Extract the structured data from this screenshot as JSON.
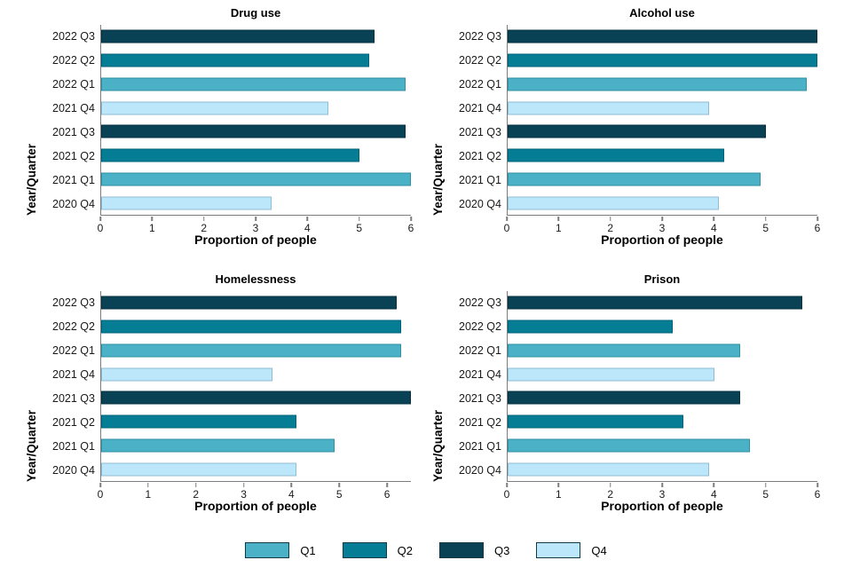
{
  "palette": {
    "q1": "#4BB1C6",
    "q2": "#057D95",
    "q3": "#0A4255",
    "q4": "#BCE7FA",
    "q1_border": "#2F8FA3",
    "q2_border": "#01617A",
    "q3_border": "#06303F",
    "q4_border": "#8FBCD4",
    "axis_color": "#7D7D7D",
    "legend_border": "#12384A"
  },
  "chart_data": [
    {
      "type": "bar",
      "orientation": "horizontal",
      "title": "Drug use",
      "xlabel": "Proportion of people",
      "ylabel": "Year/Quarter",
      "categories": [
        "2022 Q3",
        "2022 Q2",
        "2022 Q1",
        "2021 Q4",
        "2021 Q3",
        "2021 Q2",
        "2021 Q1",
        "2020 Q4"
      ],
      "values": [
        5.3,
        5.2,
        5.9,
        4.4,
        5.9,
        5.0,
        6.0,
        3.3
      ],
      "quarters": [
        "q3",
        "q2",
        "q1",
        "q4",
        "q3",
        "q2",
        "q1",
        "q4"
      ],
      "xlim": [
        0,
        6
      ],
      "xticks": [
        0,
        1,
        2,
        3,
        4,
        5,
        6
      ],
      "grid": false
    },
    {
      "type": "bar",
      "orientation": "horizontal",
      "title": "Alcohol use",
      "xlabel": "Proportion of people",
      "ylabel": "Year/Quarter",
      "categories": [
        "2022 Q3",
        "2022 Q2",
        "2022 Q1",
        "2021 Q4",
        "2021 Q3",
        "2021 Q2",
        "2021 Q1",
        "2020 Q4"
      ],
      "values": [
        6.0,
        6.0,
        5.8,
        3.9,
        5.0,
        4.2,
        4.9,
        4.1
      ],
      "quarters": [
        "q3",
        "q2",
        "q1",
        "q4",
        "q3",
        "q2",
        "q1",
        "q4"
      ],
      "xlim": [
        0,
        6
      ],
      "xticks": [
        0,
        1,
        2,
        3,
        4,
        5,
        6
      ],
      "grid": false
    },
    {
      "type": "bar",
      "orientation": "horizontal",
      "title": "Homelessness",
      "xlabel": "Proportion of people",
      "ylabel": "Year/Quarter",
      "categories": [
        "2022 Q3",
        "2022 Q2",
        "2022 Q1",
        "2021 Q4",
        "2021 Q3",
        "2021 Q2",
        "2021 Q1",
        "2020 Q4"
      ],
      "values": [
        6.2,
        6.3,
        6.3,
        3.6,
        6.5,
        4.1,
        4.9,
        4.1
      ],
      "quarters": [
        "q3",
        "q2",
        "q1",
        "q4",
        "q3",
        "q2",
        "q1",
        "q4"
      ],
      "xlim": [
        0,
        6.5
      ],
      "xticks": [
        0,
        1,
        2,
        3,
        4,
        5,
        6
      ],
      "grid": false
    },
    {
      "type": "bar",
      "orientation": "horizontal",
      "title": "Prison",
      "xlabel": "Proportion of people",
      "ylabel": "Year/Quarter",
      "categories": [
        "2022 Q3",
        "2022 Q2",
        "2022 Q1",
        "2021 Q4",
        "2021 Q3",
        "2021 Q2",
        "2021 Q1",
        "2020 Q4"
      ],
      "values": [
        5.7,
        3.2,
        4.5,
        4.0,
        4.5,
        3.4,
        4.7,
        3.9
      ],
      "quarters": [
        "q3",
        "q2",
        "q1",
        "q4",
        "q3",
        "q2",
        "q1",
        "q4"
      ],
      "xlim": [
        0,
        6
      ],
      "xticks": [
        0,
        1,
        2,
        3,
        4,
        5,
        6
      ],
      "grid": false
    }
  ],
  "legend": {
    "position": "bottom-center",
    "items": [
      {
        "label": "Q1",
        "quarter": "q1"
      },
      {
        "label": "Q2",
        "quarter": "q2"
      },
      {
        "label": "Q3",
        "quarter": "q3"
      },
      {
        "label": "Q4",
        "quarter": "q4"
      }
    ]
  }
}
